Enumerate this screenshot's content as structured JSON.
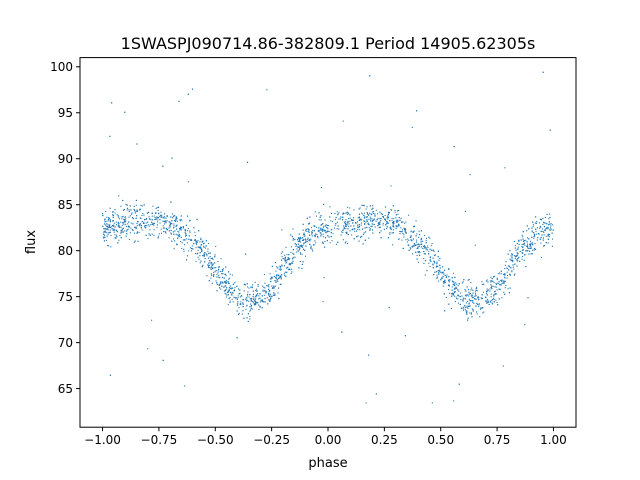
{
  "chart_data": {
    "type": "scatter",
    "title": "1SWASPJ090714.86-382809.1 Period 14905.62305s",
    "xlabel": "phase",
    "ylabel": "flux",
    "xlim": [
      -1.1,
      1.1
    ],
    "ylim": [
      60.8,
      101.0
    ],
    "xticks": [
      -1.0,
      -0.75,
      -0.5,
      -0.25,
      0.0,
      0.25,
      0.5,
      0.75,
      1.0
    ],
    "xtick_labels": [
      "−1.00",
      "−0.75",
      "−0.50",
      "−0.25",
      "0.00",
      "0.25",
      "0.50",
      "0.75",
      "1.00"
    ],
    "yticks": [
      65,
      70,
      75,
      80,
      85,
      90,
      95,
      100
    ],
    "ytick_labels": [
      "65",
      "70",
      "75",
      "80",
      "85",
      "90",
      "95",
      "100"
    ],
    "grid": false,
    "legend": "none",
    "marker_color": "#1f77b4",
    "series": [
      {
        "curve_x": [
          -1.0,
          -0.9,
          -0.8,
          -0.7,
          -0.6,
          -0.5,
          -0.45,
          -0.4,
          -0.35,
          -0.3,
          -0.25,
          -0.2,
          -0.15,
          -0.1,
          -0.05,
          0.0,
          0.1,
          0.2,
          0.3,
          0.4,
          0.5,
          0.55,
          0.6,
          0.65,
          0.7,
          0.75,
          0.8,
          0.85,
          0.9,
          0.95,
          1.0
        ],
        "curve_y": [
          82.5,
          83.0,
          83.3,
          82.8,
          81.0,
          78.0,
          76.0,
          74.8,
          74.5,
          74.8,
          76.0,
          78.0,
          80.0,
          81.3,
          82.2,
          82.5,
          83.0,
          83.3,
          82.8,
          81.0,
          78.0,
          76.0,
          74.8,
          74.5,
          74.8,
          76.0,
          78.0,
          80.0,
          81.3,
          82.2,
          82.5
        ],
        "scatter": 1.3,
        "outlier_range": [
          63,
          100
        ]
      }
    ]
  }
}
